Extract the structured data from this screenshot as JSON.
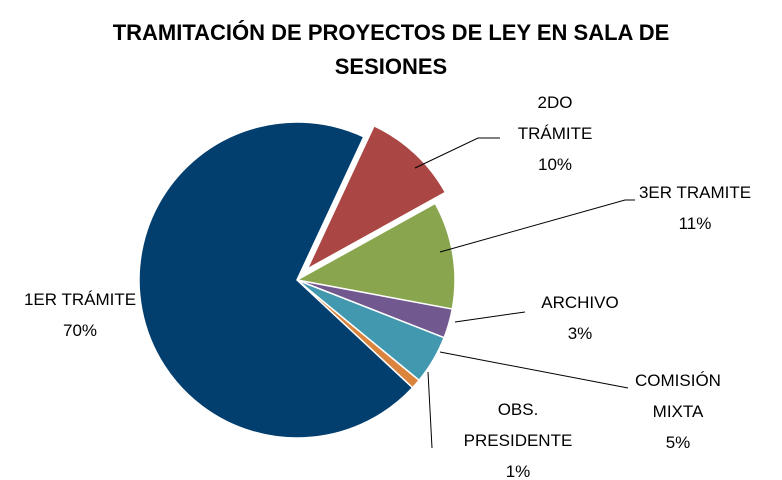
{
  "chart_data": {
    "type": "pie",
    "title": "TRAMITACIÓN DE PROYECTOS DE LEY EN SALA DE SESIONES",
    "categories": [
      "2DO TRÁMITE",
      "3ER TRAMITE",
      "ARCHIVO",
      "COMISIÓN MIXTA",
      "OBS. PRESIDENTE",
      "1ER TRÁMITE"
    ],
    "values": [
      10,
      11,
      3,
      5,
      1,
      70
    ],
    "value_labels": [
      "10%",
      "11%",
      "3%",
      "5%",
      "1%",
      "70%"
    ],
    "colors": [
      "#aa4643",
      "#89a54e",
      "#71588f",
      "#4198af",
      "#db843d",
      "#023e6e"
    ]
  }
}
